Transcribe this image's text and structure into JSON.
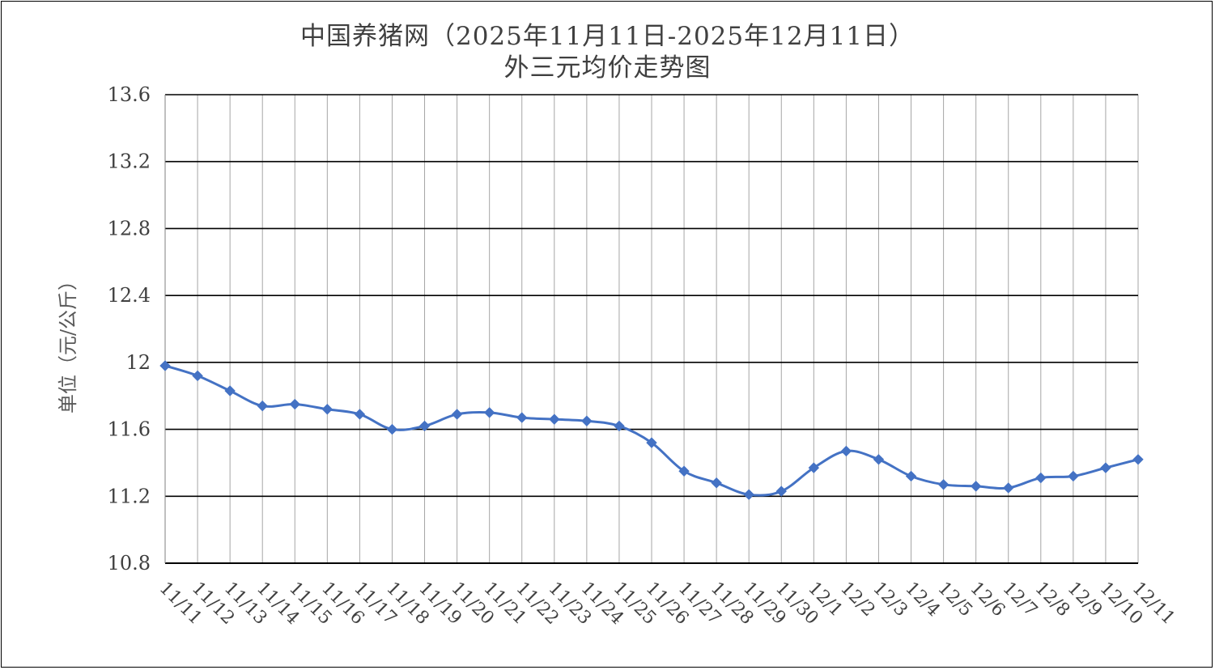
{
  "chart_data": {
    "type": "line",
    "title": "中国养猪网（2025年11月11日-2025年12月11日）",
    "subtitle": "外三元均价走势图",
    "xlabel": "",
    "ylabel": "单位（元/公斤）",
    "ylim": [
      10.8,
      13.6
    ],
    "yticks": [
      "13.6",
      "13.2",
      "12.8",
      "12.4",
      "12",
      "11.6",
      "11.2",
      "10.8"
    ],
    "ytick_values": [
      13.6,
      13.2,
      12.8,
      12.4,
      12.0,
      11.6,
      11.2,
      10.8
    ],
    "grid": true,
    "legend": "none",
    "line_color": "#4472C4",
    "categories": [
      "11/11",
      "11/12",
      "11/13",
      "11/14",
      "11/15",
      "11/16",
      "11/17",
      "11/18",
      "11/19",
      "11/20",
      "11/21",
      "11/22",
      "11/23",
      "11/24",
      "11/25",
      "11/26",
      "11/27",
      "11/28",
      "11/29",
      "11/30",
      "12/1",
      "12/2",
      "12/3",
      "12/4",
      "12/5",
      "12/6",
      "12/7",
      "12/8",
      "12/9",
      "12/10",
      "12/11"
    ],
    "series": [
      {
        "values": [
          11.98,
          11.92,
          11.83,
          11.74,
          11.75,
          11.72,
          11.69,
          11.6,
          11.62,
          11.69,
          11.7,
          11.67,
          11.66,
          11.65,
          11.62,
          11.52,
          11.35,
          11.28,
          11.21,
          11.23,
          11.37,
          11.47,
          11.42,
          11.32,
          11.27,
          11.26,
          11.25,
          11.31,
          11.32,
          11.37,
          11.42
        ]
      }
    ]
  }
}
